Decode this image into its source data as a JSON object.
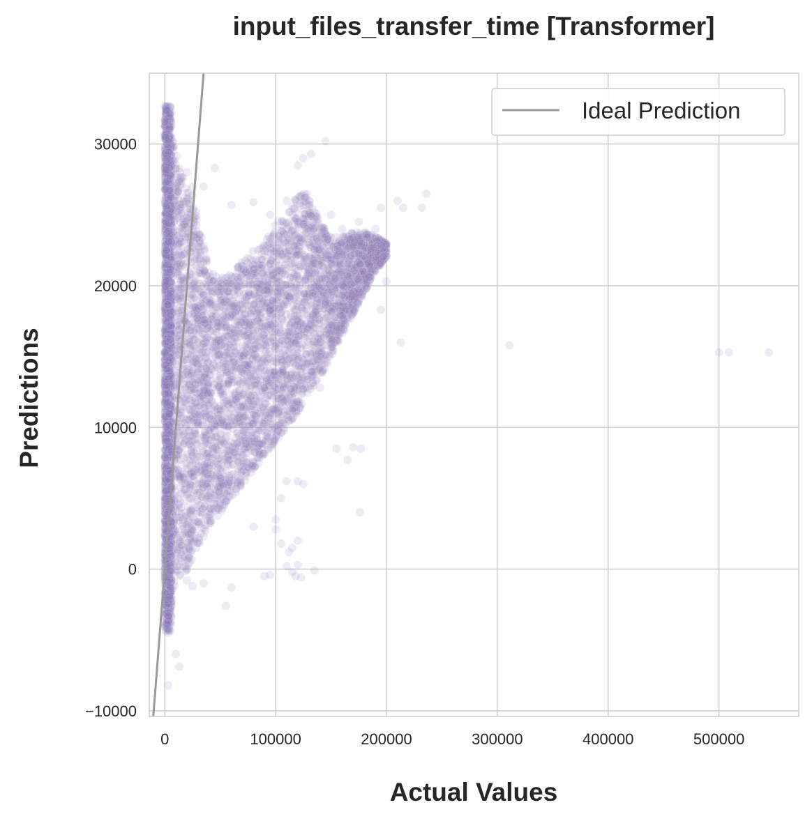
{
  "chart_data": {
    "type": "scatter",
    "title": "input_files_transfer_time [Transformer]",
    "xlabel": "Actual Values",
    "ylabel": "Predictions",
    "xlim": [
      -14000,
      572000
    ],
    "ylim": [
      -10400,
      35000
    ],
    "x_ticks": [
      0,
      100000,
      200000,
      300000,
      400000,
      500000
    ],
    "y_ticks": [
      -10000,
      0,
      10000,
      20000,
      30000
    ],
    "x_tick_labels": [
      "0",
      "100000",
      "200000",
      "300000",
      "400000",
      "500000"
    ],
    "y_tick_labels": [
      "−10000",
      "0",
      "10000",
      "20000",
      "30000"
    ],
    "grid": true,
    "legend": {
      "position": "top-right",
      "entries": [
        "Ideal Prediction"
      ]
    },
    "series": [
      {
        "name": "",
        "color": "#8a79b8",
        "opacity": 0.15,
        "description_points": [
          [
            0,
            32700
          ],
          [
            1500,
            31000
          ],
          [
            2000,
            28000
          ],
          [
            3000,
            25000
          ],
          [
            1000,
            20000
          ],
          [
            2000,
            15000
          ],
          [
            500,
            10000
          ],
          [
            1000,
            5000
          ],
          [
            0,
            0
          ],
          [
            1000,
            -2000
          ],
          [
            2000,
            -3500
          ],
          [
            3000,
            -4500
          ],
          [
            10000,
            -6000
          ],
          [
            13000,
            -6900
          ],
          [
            3000,
            -8200
          ],
          [
            20000,
            28000
          ],
          [
            25000,
            27000
          ],
          [
            35000,
            27000
          ],
          [
            45000,
            28300
          ],
          [
            60000,
            25700
          ],
          [
            80000,
            25900
          ],
          [
            95000,
            25000
          ],
          [
            110000,
            26000
          ],
          [
            120000,
            28500
          ],
          [
            125000,
            29000
          ],
          [
            132000,
            29300
          ],
          [
            145000,
            30200
          ],
          [
            150000,
            25000
          ],
          [
            160000,
            24000
          ],
          [
            175000,
            24500
          ],
          [
            190000,
            24000
          ],
          [
            195000,
            25500
          ],
          [
            210000,
            26000
          ],
          [
            215000,
            25500
          ],
          [
            232000,
            25500
          ],
          [
            236000,
            26500
          ],
          [
            200000,
            20300
          ],
          [
            195000,
            18300
          ],
          [
            213000,
            16000
          ],
          [
            311000,
            15800
          ],
          [
            500000,
            15300
          ],
          [
            509000,
            15300
          ],
          [
            545000,
            15300
          ],
          [
            140000,
            12800
          ],
          [
            155000,
            8500
          ],
          [
            170000,
            8600
          ],
          [
            177000,
            8500
          ],
          [
            165000,
            7700
          ],
          [
            176000,
            4000
          ],
          [
            120000,
            6200
          ],
          [
            110000,
            6200
          ],
          [
            125000,
            6000
          ],
          [
            105000,
            5000
          ],
          [
            100000,
            3500
          ],
          [
            80000,
            3000
          ],
          [
            100000,
            2800
          ],
          [
            105000,
            1800
          ],
          [
            115000,
            1500
          ],
          [
            120000,
            2000
          ],
          [
            112000,
            1200
          ],
          [
            110000,
            200
          ],
          [
            115000,
            -200
          ],
          [
            120000,
            300
          ],
          [
            118000,
            -500
          ],
          [
            123000,
            -600
          ],
          [
            135000,
            -100
          ],
          [
            90000,
            -500
          ],
          [
            95000,
            -400
          ],
          [
            60000,
            -1300
          ],
          [
            55000,
            -2600
          ],
          [
            25000,
            -1200
          ],
          [
            20000,
            -800
          ],
          [
            35000,
            -1000
          ]
        ]
      }
    ],
    "ideal_line": {
      "name": "Ideal Prediction",
      "color": "#999999",
      "from": [
        -14000,
        -14000
      ],
      "to": [
        572000,
        572000
      ]
    }
  }
}
